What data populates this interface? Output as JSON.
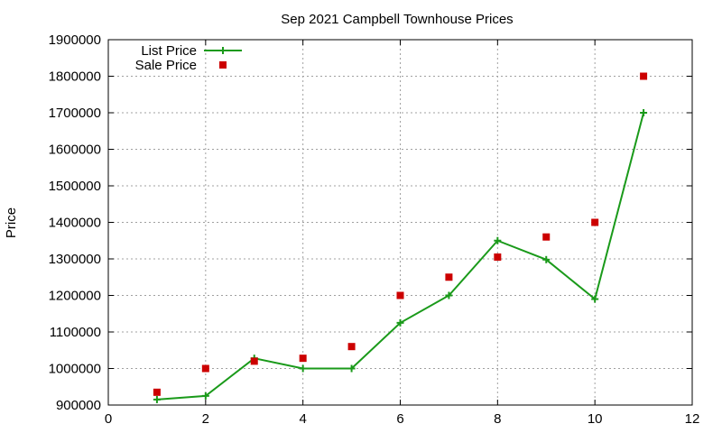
{
  "chart_data": {
    "type": "line",
    "title": "Sep 2021 Campbell Townhouse Prices",
    "xlabel": "",
    "ylabel": "Price",
    "xlim": [
      0,
      12
    ],
    "ylim": [
      900000,
      1900000
    ],
    "x_ticks": [
      "0",
      "2",
      "4",
      "6",
      "8",
      "10",
      "12"
    ],
    "y_ticks": [
      "900000",
      "1000000",
      "1100000",
      "1200000",
      "1300000",
      "1400000",
      "1500000",
      "1600000",
      "1700000",
      "1800000",
      "1900000"
    ],
    "grid": true,
    "legend_position": "top-left",
    "series": [
      {
        "name": "List Price",
        "style": "line with plus markers",
        "color": "#1a9a1a",
        "x": [
          1,
          2,
          3,
          4,
          5,
          6,
          7,
          8,
          9,
          10,
          11
        ],
        "y": [
          915000,
          925000,
          1028000,
          1000000,
          1000000,
          1125000,
          1200000,
          1350000,
          1298000,
          1190000,
          1700000
        ]
      },
      {
        "name": "Sale Price",
        "style": "square points",
        "color": "#cc0000",
        "x": [
          1,
          2,
          3,
          4,
          5,
          6,
          7,
          8,
          9,
          10,
          11
        ],
        "y": [
          935000,
          1000000,
          1020000,
          1028000,
          1060000,
          1200000,
          1250000,
          1305000,
          1360000,
          1400000,
          1800000
        ]
      }
    ]
  }
}
